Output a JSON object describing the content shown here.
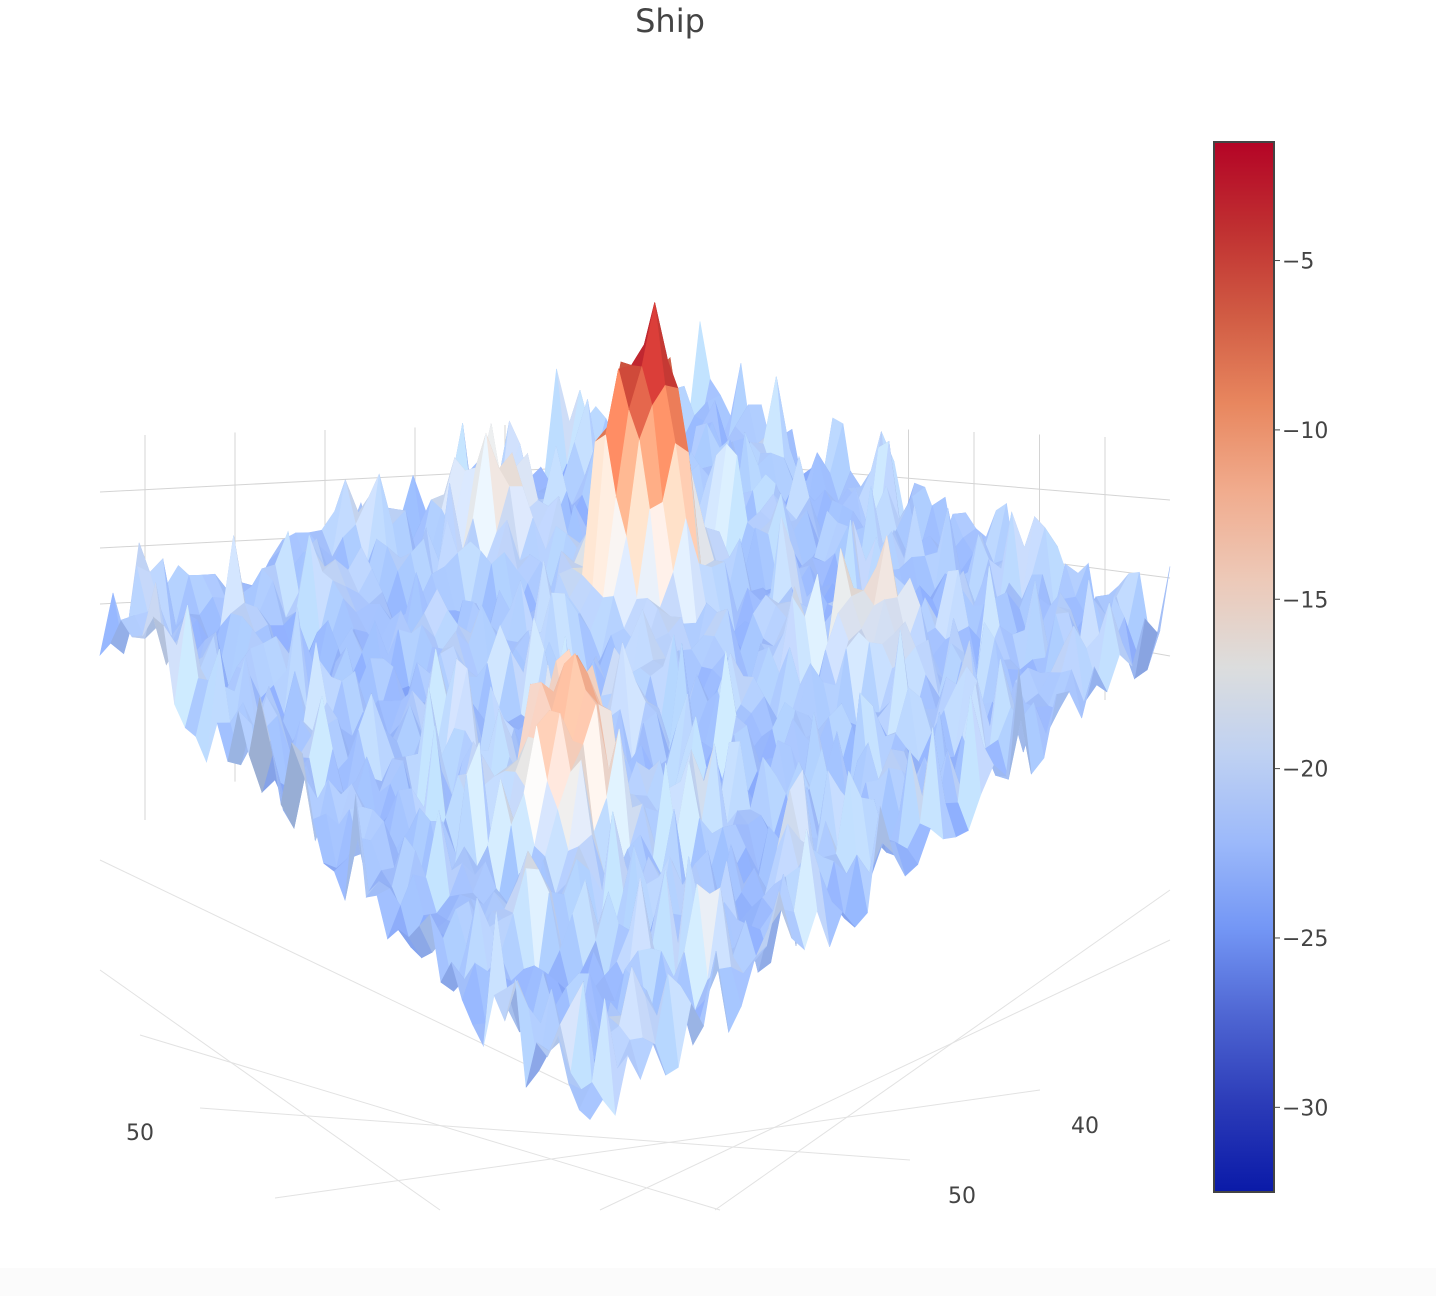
{
  "chart_data": {
    "type": "surface",
    "title": "Ship",
    "xlabel": "",
    "ylabel": "",
    "zlabel": "",
    "x_tick_labels": [
      "50"
    ],
    "y_tick_labels": [
      "40",
      "50"
    ],
    "colorscale": "coolwarm",
    "colorscale_stops": [
      "#0a1aa8",
      "#3b4cc0",
      "#7396f5",
      "#b0cbfc",
      "#dcdddd",
      "#f6bfa6",
      "#e8875f",
      "#c64637",
      "#b40426"
    ],
    "z_range": [
      -32.5,
      -1.5
    ],
    "colorbar_ticks": [
      -5,
      -10,
      -15,
      -20,
      -25,
      -30
    ],
    "colorbar_tick_labels": [
      "−5",
      "−10",
      "−15",
      "−20",
      "−25",
      "−30"
    ],
    "peaks": [
      {
        "label": "main-peak",
        "z": -1.5
      },
      {
        "label": "secondary-peak",
        "z": -12
      },
      {
        "label": "left-back-peak",
        "z": -15.5
      },
      {
        "label": "right-back-peak",
        "z": -15
      }
    ],
    "background_z": -22,
    "grid": true
  }
}
